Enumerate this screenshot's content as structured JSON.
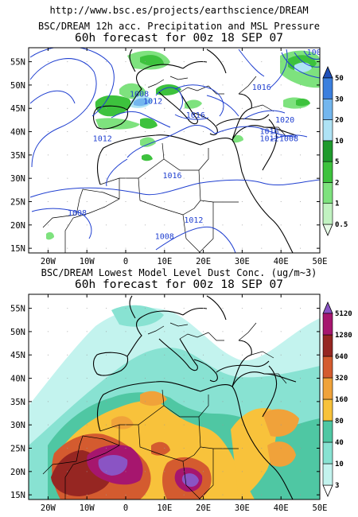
{
  "header": {
    "url": "http://www.bsc.es/projects/earthscience/DREAM"
  },
  "panel_precip": {
    "title_line1": "BSC/DREAM 12h acc. Precipitation and MSL Pressure",
    "title_line2": "60h forecast for 00z 18 SEP 07",
    "colorbar_labels": [
      "0.5",
      "1",
      "2",
      "5",
      "10",
      "20",
      "30",
      "50"
    ],
    "colorbar_colors": [
      "#e6fae6",
      "#c1f2c1",
      "#7ee27e",
      "#3dc23d",
      "#1e9a2c",
      "#aee3f5",
      "#73b6ee",
      "#3b7fde",
      "#1f4fb8"
    ],
    "accent_isobar": "#1f3fd0",
    "isobar_labels": [
      {
        "value": "1008",
        "lon": 3.5,
        "lat": 47.5
      },
      {
        "value": "1012",
        "lon": 7,
        "lat": 46
      },
      {
        "value": "1016",
        "lon": 18,
        "lat": 43
      },
      {
        "value": "1016",
        "lon": 35,
        "lat": 49
      },
      {
        "value": "1020",
        "lon": 41,
        "lat": 42
      },
      {
        "value": "1016",
        "lon": 37,
        "lat": 39.5
      },
      {
        "value": "1012",
        "lon": 37,
        "lat": 38
      },
      {
        "value": "1008",
        "lon": 42,
        "lat": 38
      },
      {
        "value": "1012",
        "lon": -6,
        "lat": 38
      },
      {
        "value": "1016",
        "lon": 12,
        "lat": 30
      },
      {
        "value": "1008",
        "lon": -12.5,
        "lat": 22
      },
      {
        "value": "1012",
        "lon": 17.5,
        "lat": 20.5
      },
      {
        "value": "1008",
        "lon": 10,
        "lat": 17
      },
      {
        "value": "100",
        "lon": 48.5,
        "lat": 56.5
      }
    ]
  },
  "panel_dust": {
    "title_line1": "BSC/DREAM Lowest Model Level Dust Conc. (ug/m~3)",
    "title_line2": "60h forecast for 00z 18 SEP 07",
    "colorbar_labels": [
      "3",
      "10",
      "40",
      "80",
      "160",
      "320",
      "640",
      "1280",
      "5120"
    ],
    "colorbar_colors": [
      "#ffffff",
      "#c3f3ee",
      "#88e2d2",
      "#4fc7a3",
      "#f8c23b",
      "#f0a23a",
      "#d45b2f",
      "#962622",
      "#a6166e",
      "#8a54c4"
    ]
  },
  "axes": {
    "lon_range": [
      -25,
      50
    ],
    "lat_range": [
      14,
      58
    ],
    "lon_ticks": [
      "20W",
      "10W",
      "0",
      "10E",
      "20E",
      "30E",
      "40E",
      "50E"
    ],
    "lat_ticks": [
      "15N",
      "20N",
      "25N",
      "30N",
      "35N",
      "40N",
      "45N",
      "50N",
      "55N"
    ]
  }
}
